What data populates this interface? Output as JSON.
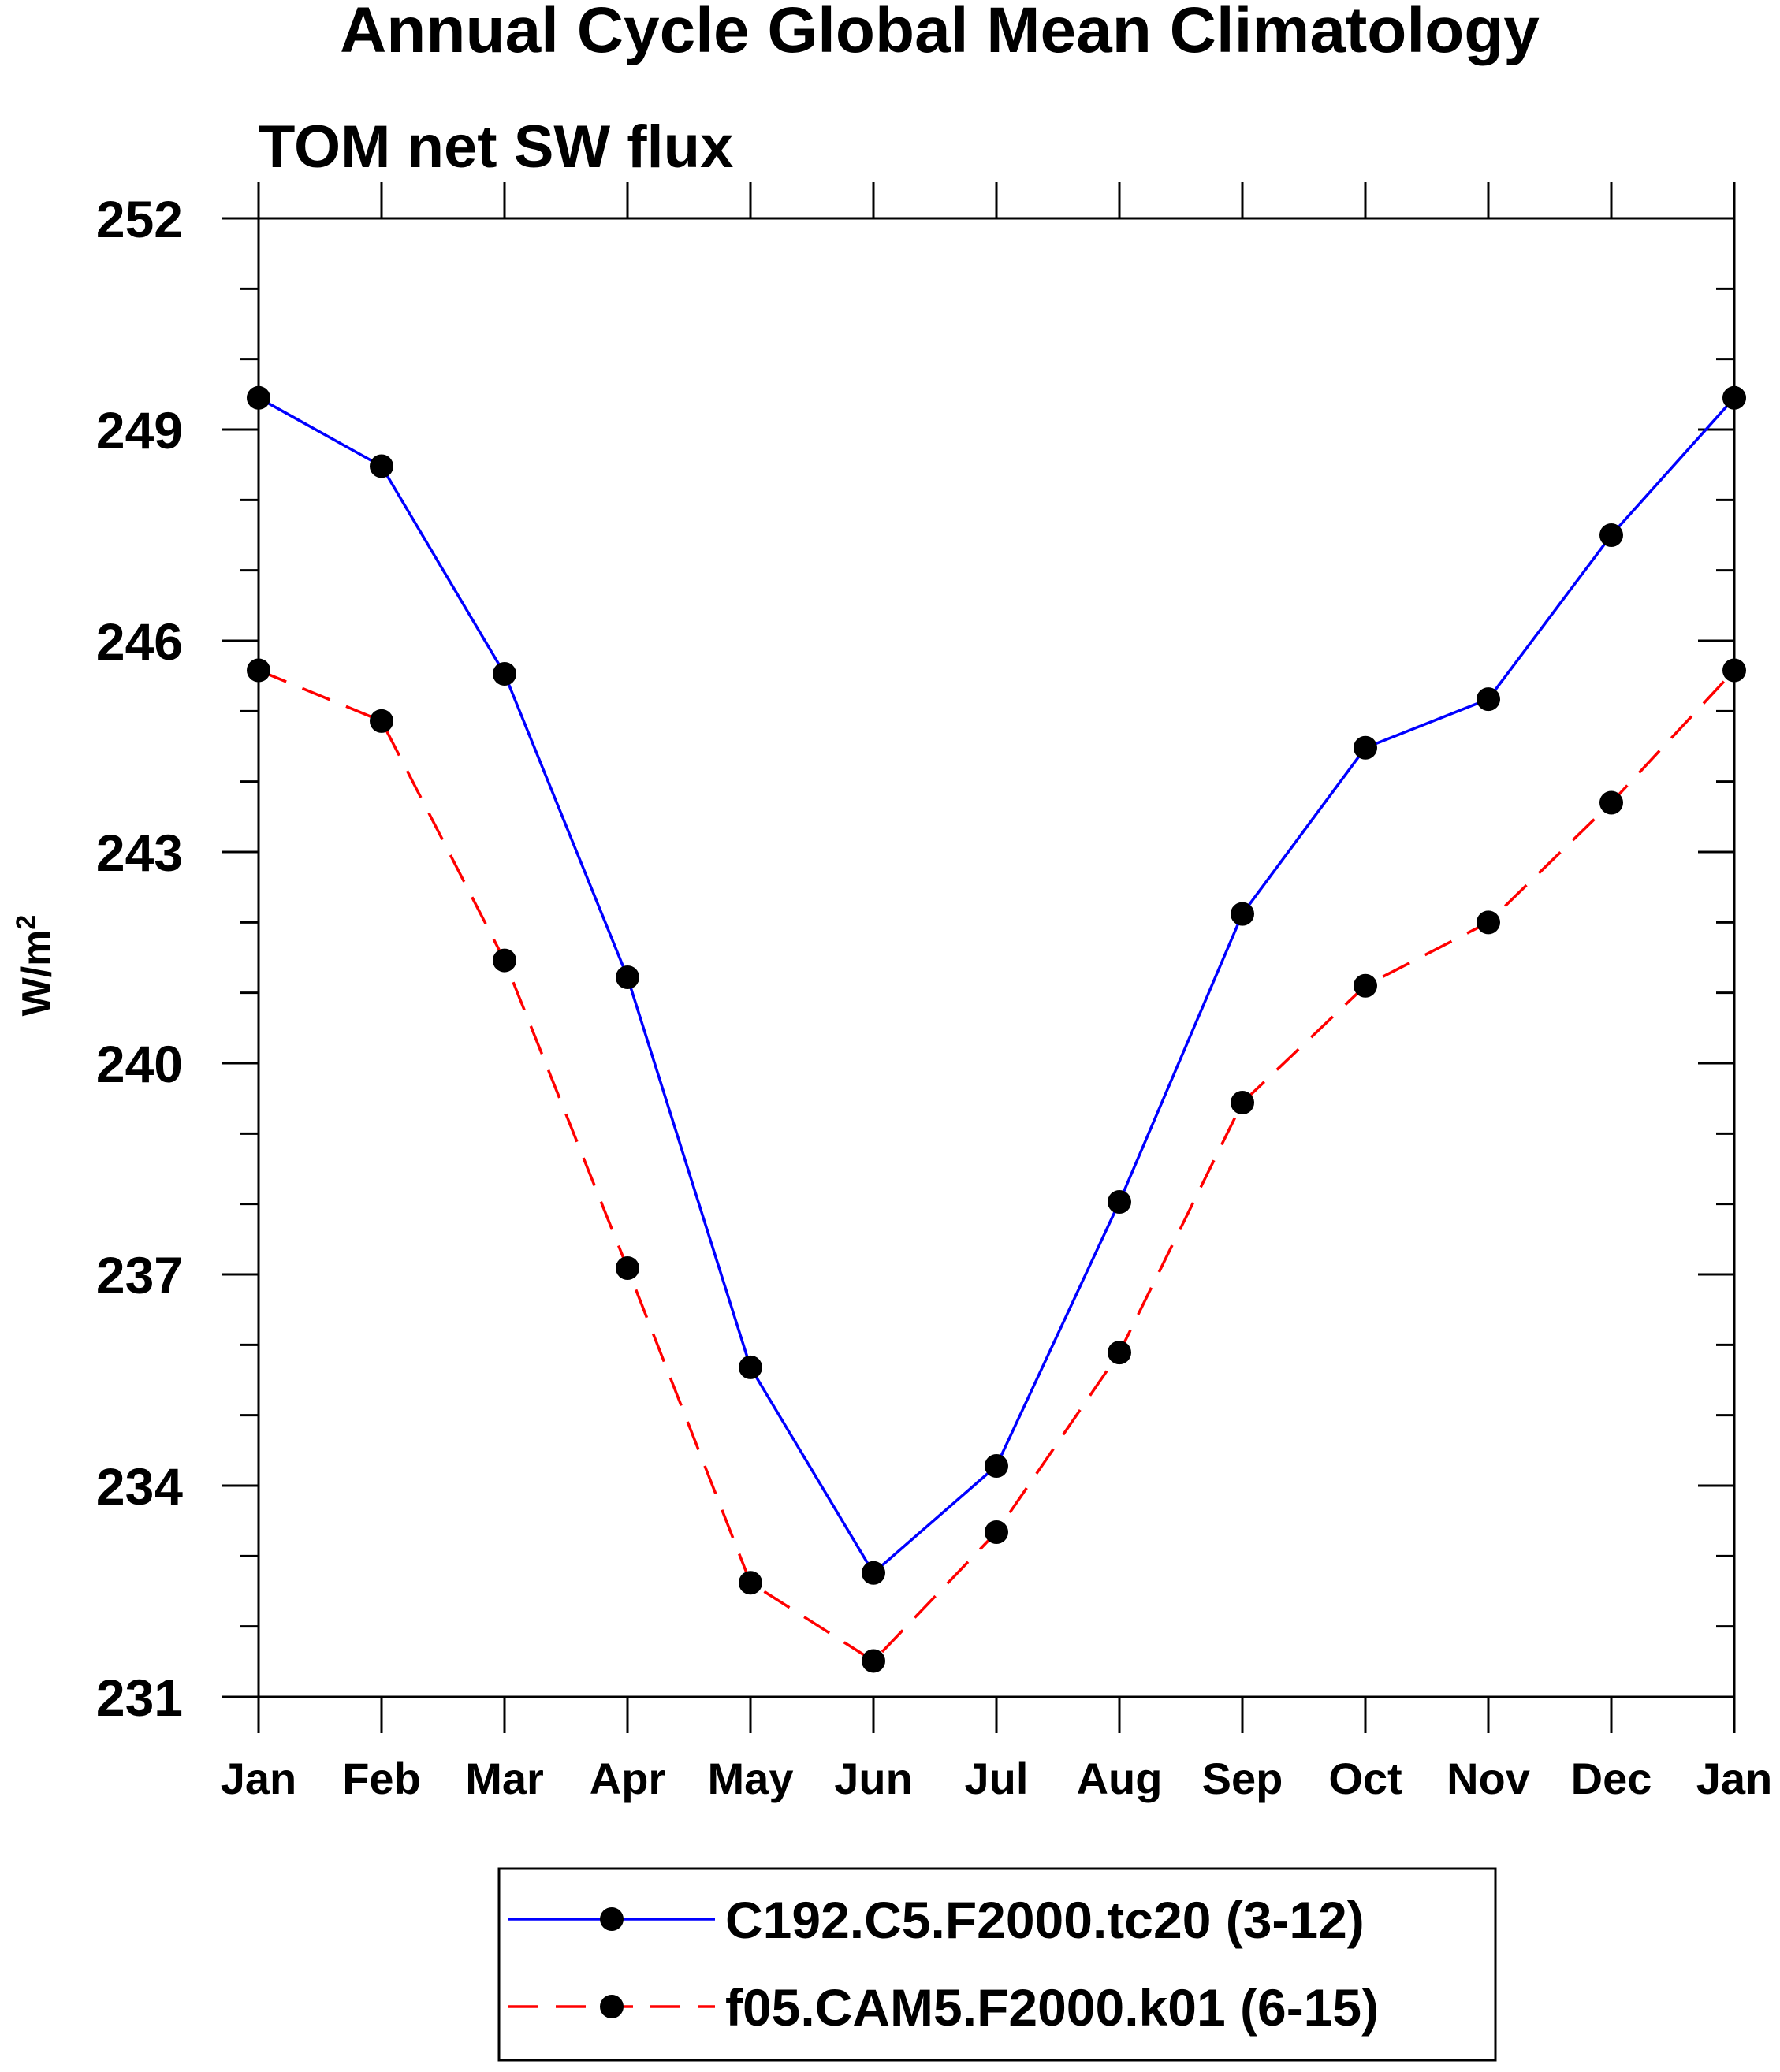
{
  "chart_data": {
    "type": "line",
    "title": "Annual Cycle Global Mean Climatology",
    "subtitle": "TOM net SW flux",
    "ylabel": "W/m",
    "ylabel_superscript": "2",
    "xlabel": "",
    "categories": [
      "Jan",
      "Feb",
      "Mar",
      "Apr",
      "May",
      "Jun",
      "Jul",
      "Aug",
      "Sep",
      "Oct",
      "Nov",
      "Dec",
      "Jan"
    ],
    "ylim": [
      231,
      252
    ],
    "yticks": [
      231,
      234,
      237,
      240,
      243,
      246,
      249,
      252
    ],
    "y_minor_step": 1,
    "grid": false,
    "legend_position": "bottom",
    "series": [
      {
        "name": "C192.C5.F2000.tc20 (3-12)",
        "color": "#0000ff",
        "line_style": "solid",
        "marker": "filled-circle",
        "values": [
          249.45,
          248.48,
          245.53,
          241.22,
          235.68,
          232.76,
          234.28,
          238.03,
          242.12,
          244.48,
          245.17,
          247.5,
          249.45
        ]
      },
      {
        "name": "f05.CAM5.F2000.k01 (6-15)",
        "color": "#ff0000",
        "line_style": "dashed",
        "marker": "filled-circle",
        "values": [
          245.58,
          244.86,
          241.46,
          237.09,
          232.62,
          231.51,
          233.34,
          235.89,
          239.44,
          241.1,
          242.0,
          243.7,
          245.58
        ]
      }
    ]
  }
}
